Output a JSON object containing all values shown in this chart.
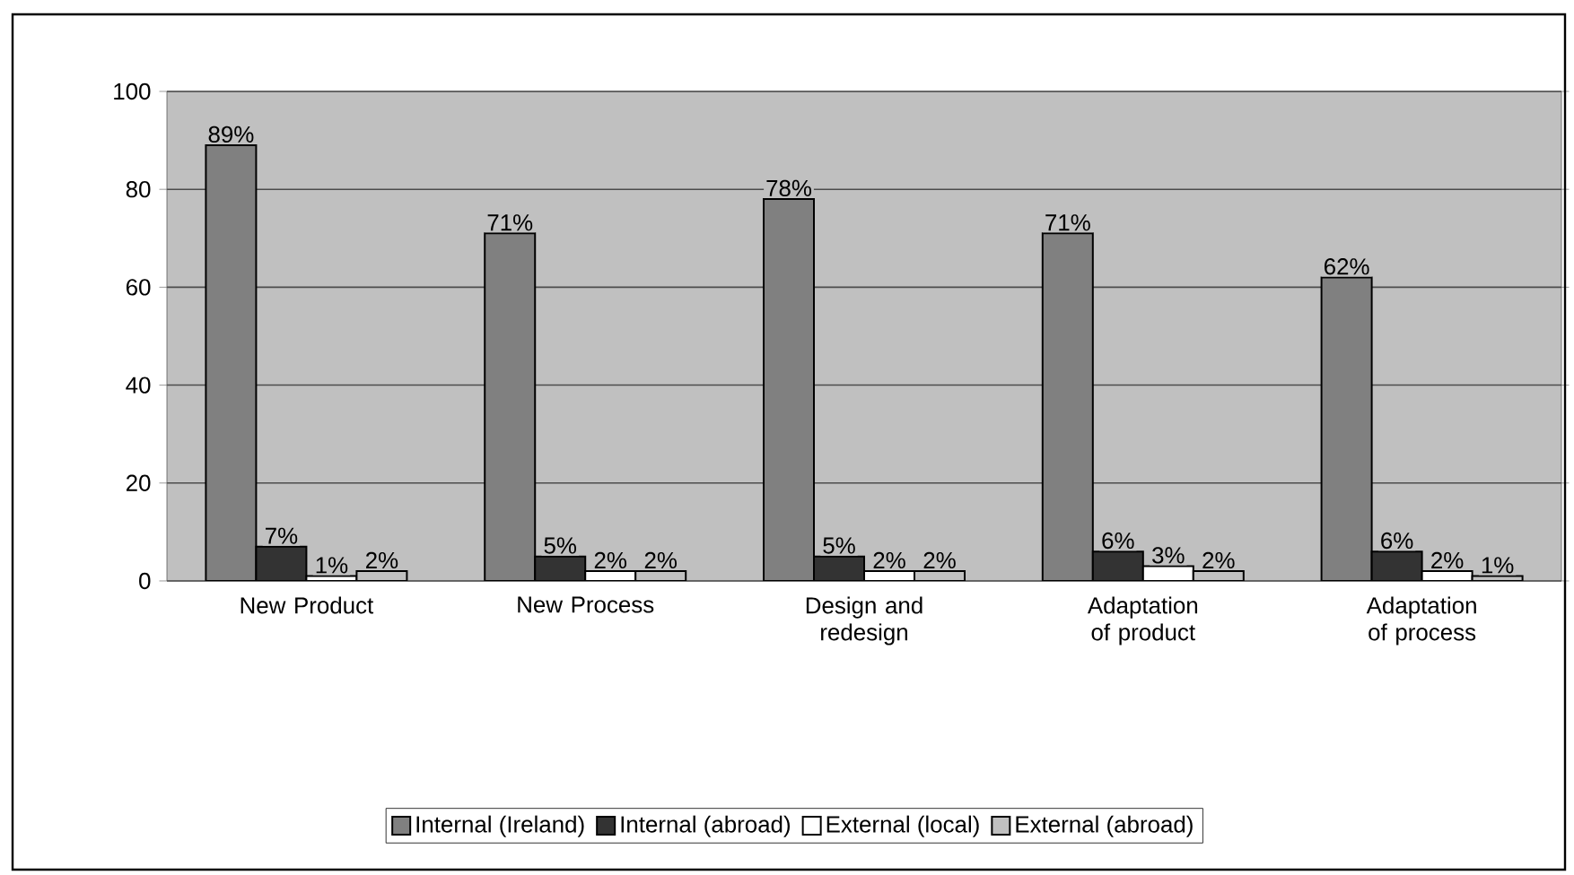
{
  "chart_data": {
    "type": "bar",
    "categories": [
      "New Product",
      "New Process",
      "Design and redesign",
      "Adaptation of product",
      "Adaptation of process"
    ],
    "series": [
      {
        "name": "Internal (Ireland)",
        "color": "#808080",
        "values": [
          89,
          71,
          78,
          71,
          62
        ],
        "value_labels": [
          "89%",
          "71%",
          "78%",
          "71%",
          "62%"
        ]
      },
      {
        "name": "Internal (abroad)",
        "color": "#333333",
        "values": [
          7,
          5,
          5,
          6,
          6
        ],
        "value_labels": [
          "7%",
          "5%",
          "5%",
          "6%",
          "6%"
        ]
      },
      {
        "name": "External (local)",
        "color": "#ffffff",
        "values": [
          1,
          2,
          2,
          3,
          2
        ],
        "value_labels": [
          "1%",
          "2%",
          "2%",
          "3%",
          "2%"
        ]
      },
      {
        "name": "External (abroad)",
        "color": "#c0c0c0",
        "values": [
          2,
          2,
          2,
          2,
          1
        ],
        "value_labels": [
          "2%",
          "2%",
          "2%",
          "2%",
          "1%"
        ]
      }
    ],
    "ylim": [
      0,
      100
    ],
    "yticks": [
      0,
      20,
      40,
      60,
      80,
      100
    ],
    "grid": "y",
    "legend": "bottom"
  }
}
